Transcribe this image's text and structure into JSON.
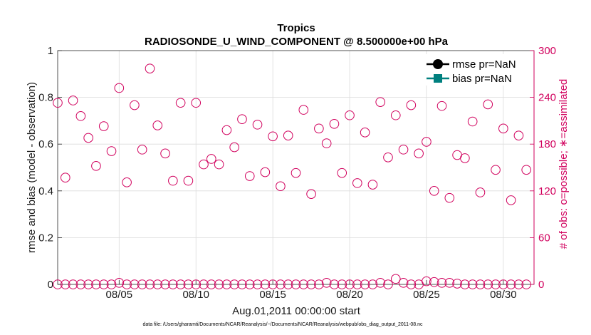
{
  "chart_data": {
    "type": "scatter",
    "title": "Tropics",
    "subtitle": "RADIOSONDE_U_WIND_COMPONENT @ 8.500000e+00 hPa",
    "xlabel": "Aug.01,2011 00:00:00 start",
    "ylabel": "rmse and bias (model - observation)",
    "y2label": "# of obs: o=possible; ∗=assimilated",
    "xlim": [
      1,
      32
    ],
    "ylim": [
      0,
      1
    ],
    "y2lim": [
      0,
      300
    ],
    "x_ticks": [
      {
        "value": 5,
        "label": "08/05"
      },
      {
        "value": 10,
        "label": "08/10"
      },
      {
        "value": 15,
        "label": "08/15"
      },
      {
        "value": 20,
        "label": "08/20"
      },
      {
        "value": 25,
        "label": "08/25"
      },
      {
        "value": 30,
        "label": "08/30"
      }
    ],
    "y_ticks": [
      {
        "value": 0,
        "label": "0"
      },
      {
        "value": 0.2,
        "label": "0.2"
      },
      {
        "value": 0.4,
        "label": "0.4"
      },
      {
        "value": 0.6,
        "label": "0.6"
      },
      {
        "value": 0.8,
        "label": "0.8"
      },
      {
        "value": 1,
        "label": "1"
      }
    ],
    "y2_ticks": [
      {
        "value": 0,
        "label": "0"
      },
      {
        "value": 60,
        "label": "60"
      },
      {
        "value": 120,
        "label": "120"
      },
      {
        "value": 180,
        "label": "180"
      },
      {
        "value": 240,
        "label": "240"
      },
      {
        "value": 300,
        "label": "300"
      }
    ],
    "grid": true,
    "legend_position": "top-right",
    "legend": [
      {
        "label": "rmse pr=NaN",
        "color": "#000000",
        "marker": "circle"
      },
      {
        "label": "bias pr=NaN",
        "color": "#00807f",
        "marker": "square"
      }
    ],
    "series": [
      {
        "name": "possible observations",
        "marker": "open-circle",
        "color": "#d1005d",
        "axis": "right",
        "x": [
          1.0,
          1.5,
          2.0,
          2.5,
          3.0,
          3.5,
          4.0,
          4.5,
          5.0,
          5.5,
          6.0,
          6.5,
          7.0,
          7.5,
          8.0,
          8.5,
          9.0,
          9.5,
          10.0,
          10.5,
          11.0,
          11.5,
          12.0,
          12.5,
          13.0,
          13.5,
          14.0,
          14.5,
          15.0,
          15.5,
          16.0,
          16.5,
          17.0,
          17.5,
          18.0,
          18.5,
          19.0,
          19.5,
          20.0,
          20.5,
          21.0,
          21.5,
          22.0,
          22.5,
          23.0,
          23.5,
          24.0,
          24.5,
          25.0,
          25.5,
          26.0,
          26.5,
          27.0,
          27.5,
          28.0,
          28.5,
          29.0,
          29.5,
          30.0,
          30.5,
          31.0,
          31.5
        ],
        "y": [
          233,
          137,
          236,
          216,
          188,
          152,
          203,
          171,
          252,
          131,
          230,
          173,
          277,
          204,
          168,
          133,
          233,
          133,
          233,
          154,
          161,
          154,
          198,
          176,
          212,
          139,
          205,
          144,
          190,
          126,
          191,
          143,
          224,
          116,
          200,
          181,
          206,
          143,
          217,
          130,
          195,
          128,
          234,
          163,
          217,
          173,
          230,
          168,
          183,
          120,
          229,
          111,
          166,
          162,
          209,
          118,
          231,
          147,
          200,
          108,
          191,
          147
        ]
      },
      {
        "name": "assimilated observations",
        "marker": "open-circle",
        "color": "#d1005d",
        "axis": "right",
        "x": [
          1.0,
          1.5,
          2.0,
          2.5,
          3.0,
          3.5,
          4.0,
          4.5,
          5.0,
          5.5,
          6.0,
          6.5,
          7.0,
          7.5,
          8.0,
          8.5,
          9.0,
          9.5,
          10.0,
          10.5,
          11.0,
          11.5,
          12.0,
          12.5,
          13.0,
          13.5,
          14.0,
          14.5,
          15.0,
          15.5,
          16.0,
          16.5,
          17.0,
          17.5,
          18.0,
          18.5,
          19.0,
          19.5,
          20.0,
          20.5,
          21.0,
          21.5,
          22.0,
          22.5,
          23.0,
          23.5,
          24.0,
          24.5,
          25.0,
          25.5,
          26.0,
          26.5,
          27.0,
          27.5,
          28.0,
          28.5,
          29.0,
          29.5,
          30.0,
          30.5,
          31.0,
          31.5
        ],
        "y": [
          0,
          0,
          0,
          0,
          0,
          0,
          0,
          0,
          2,
          0,
          0,
          0,
          0,
          0,
          0,
          0,
          0,
          0,
          0,
          0,
          0,
          0,
          0,
          0,
          0,
          0,
          0,
          0,
          0,
          0,
          0,
          0,
          0,
          0,
          0,
          2,
          0,
          0,
          0,
          0,
          0,
          0,
          2,
          0,
          7,
          2,
          0,
          0,
          4,
          3,
          2,
          2,
          1,
          0,
          0,
          0,
          0,
          0,
          0,
          0,
          0,
          0
        ]
      }
    ],
    "footnote": "data file: /Users/gharamti/Documents/NCAR/Reanalysis/~/Documents/NCAR/Reanalysis/webpub/obs_diag_output_2011-08.nc"
  },
  "colors": {
    "obs": "#d1005d",
    "grid": "#dcdcdc",
    "axis": "#262626",
    "rmse": "#000000",
    "bias": "#00807f"
  }
}
